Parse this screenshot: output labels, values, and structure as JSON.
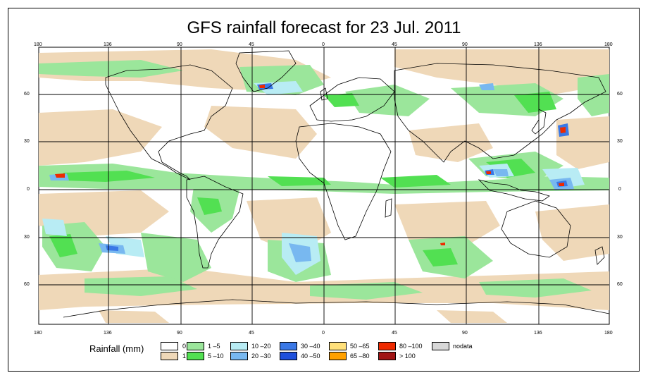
{
  "title": "GFS rainfall forecast for 23 Jul. 2011",
  "lon_labels_top": [
    "180",
    "136",
    "90",
    "45",
    "0",
    "45",
    "90",
    "136",
    "180"
  ],
  "lon_labels_bottom": [
    "180",
    "136",
    "90",
    "45",
    "0",
    "45",
    "90",
    "136",
    "180"
  ],
  "lat_labels_left": [
    "60",
    "30",
    "0",
    "30",
    "60"
  ],
  "lat_labels_right": [
    "60",
    "30",
    "0",
    "30",
    "60"
  ],
  "legend": {
    "title": "Rainfall (mm)",
    "items": [
      {
        "label": "0",
        "color": "#ffffff"
      },
      {
        "label": "1",
        "color": "#efd8b8"
      },
      {
        "label": "1 –5",
        "color": "#9be69b"
      },
      {
        "label": "5 –10",
        "color": "#52e052"
      },
      {
        "label": "10 –20",
        "color": "#b8ecf4"
      },
      {
        "label": "20 –30",
        "color": "#78b8f0"
      },
      {
        "label": "30 –40",
        "color": "#3a78e6"
      },
      {
        "label": "40 –50",
        "color": "#1e50dc"
      },
      {
        "label": "50 –65",
        "color": "#ffe07a"
      },
      {
        "label": "65 –80",
        "color": "#ffa000"
      },
      {
        "label": "80 –100",
        "color": "#ee2a00"
      },
      {
        "label": "> 100",
        "color": "#a01414"
      },
      {
        "label": "nodata",
        "color": "#d8d8d8"
      }
    ]
  }
}
